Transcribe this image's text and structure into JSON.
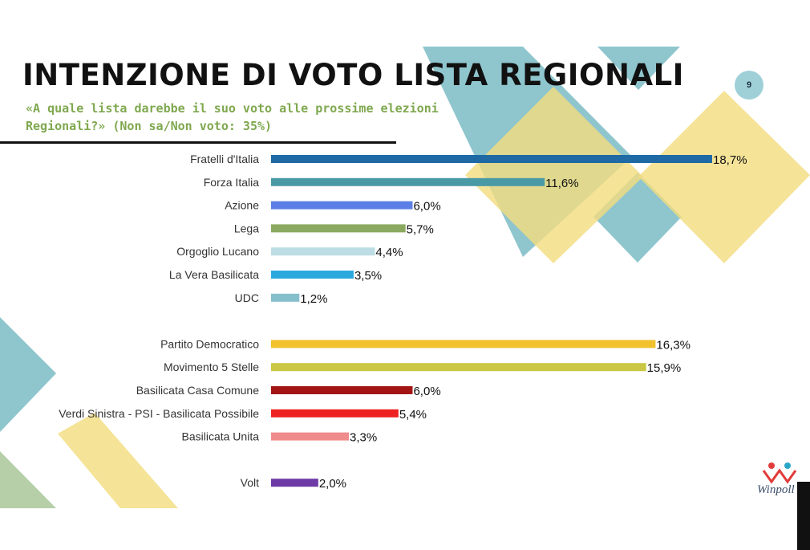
{
  "title": "INTENZIONE DI VOTO LISTA REGIONALI",
  "subtitle": "«A quale lista darebbe il suo voto alle prossime elezioni Regionali?» (Non sa/Non voto: 35%)",
  "page_number": "9",
  "logo_text": "Winpoll",
  "colors": {
    "title": "#111111",
    "subtitle": "#7fa84f",
    "deco_teal": "#7bbcc6",
    "deco_yellow": "#f2dc7e",
    "deco_green": "#a9c79a"
  },
  "chart_data": {
    "type": "bar",
    "orientation": "horizontal",
    "title": "",
    "xlabel": "",
    "ylabel": "",
    "xlim": [
      0,
      18.7
    ],
    "grid": false,
    "legend": "none",
    "groups": [
      [
        "Fratelli d'Italia",
        "Forza Italia",
        "Azione",
        "Lega",
        "Orgoglio Lucano",
        "La Vera Basilicata",
        "UDC"
      ],
      [
        "Partito Democratico",
        "Movimento 5 Stelle",
        "Basilicata Casa Comune",
        "Verdi Sinistra - PSI - Basilicata Possibile",
        "Basilicata Unita"
      ],
      [
        "Volt"
      ]
    ],
    "categories": [
      "Fratelli d'Italia",
      "Forza Italia",
      "Azione",
      "Lega",
      "Orgoglio Lucano",
      "La Vera Basilicata",
      "UDC",
      "Partito Democratico",
      "Movimento 5 Stelle",
      "Basilicata Casa Comune",
      "Verdi Sinistra - PSI - Basilicata Possibile",
      "Basilicata Unita",
      "Volt"
    ],
    "values": [
      18.7,
      11.6,
      6.0,
      5.7,
      4.4,
      3.5,
      1.2,
      16.3,
      15.9,
      6.0,
      5.4,
      3.3,
      2.0
    ],
    "value_labels": [
      "18,7%",
      "11,6%",
      "6,0%",
      "5,7%",
      "4,4%",
      "3,5%",
      "1,2%",
      "16,3%",
      "15,9%",
      "6,0%",
      "5,4%",
      "3,3%",
      "2,0%"
    ],
    "colors": [
      "#1f6aa5",
      "#4a9aa6",
      "#5b7fe6",
      "#8aa860",
      "#bcdde3",
      "#2ba9df",
      "#86bfcc",
      "#f2c12e",
      "#c9c743",
      "#a31515",
      "#ee2222",
      "#f08b8b",
      "#6e3aa6"
    ]
  }
}
